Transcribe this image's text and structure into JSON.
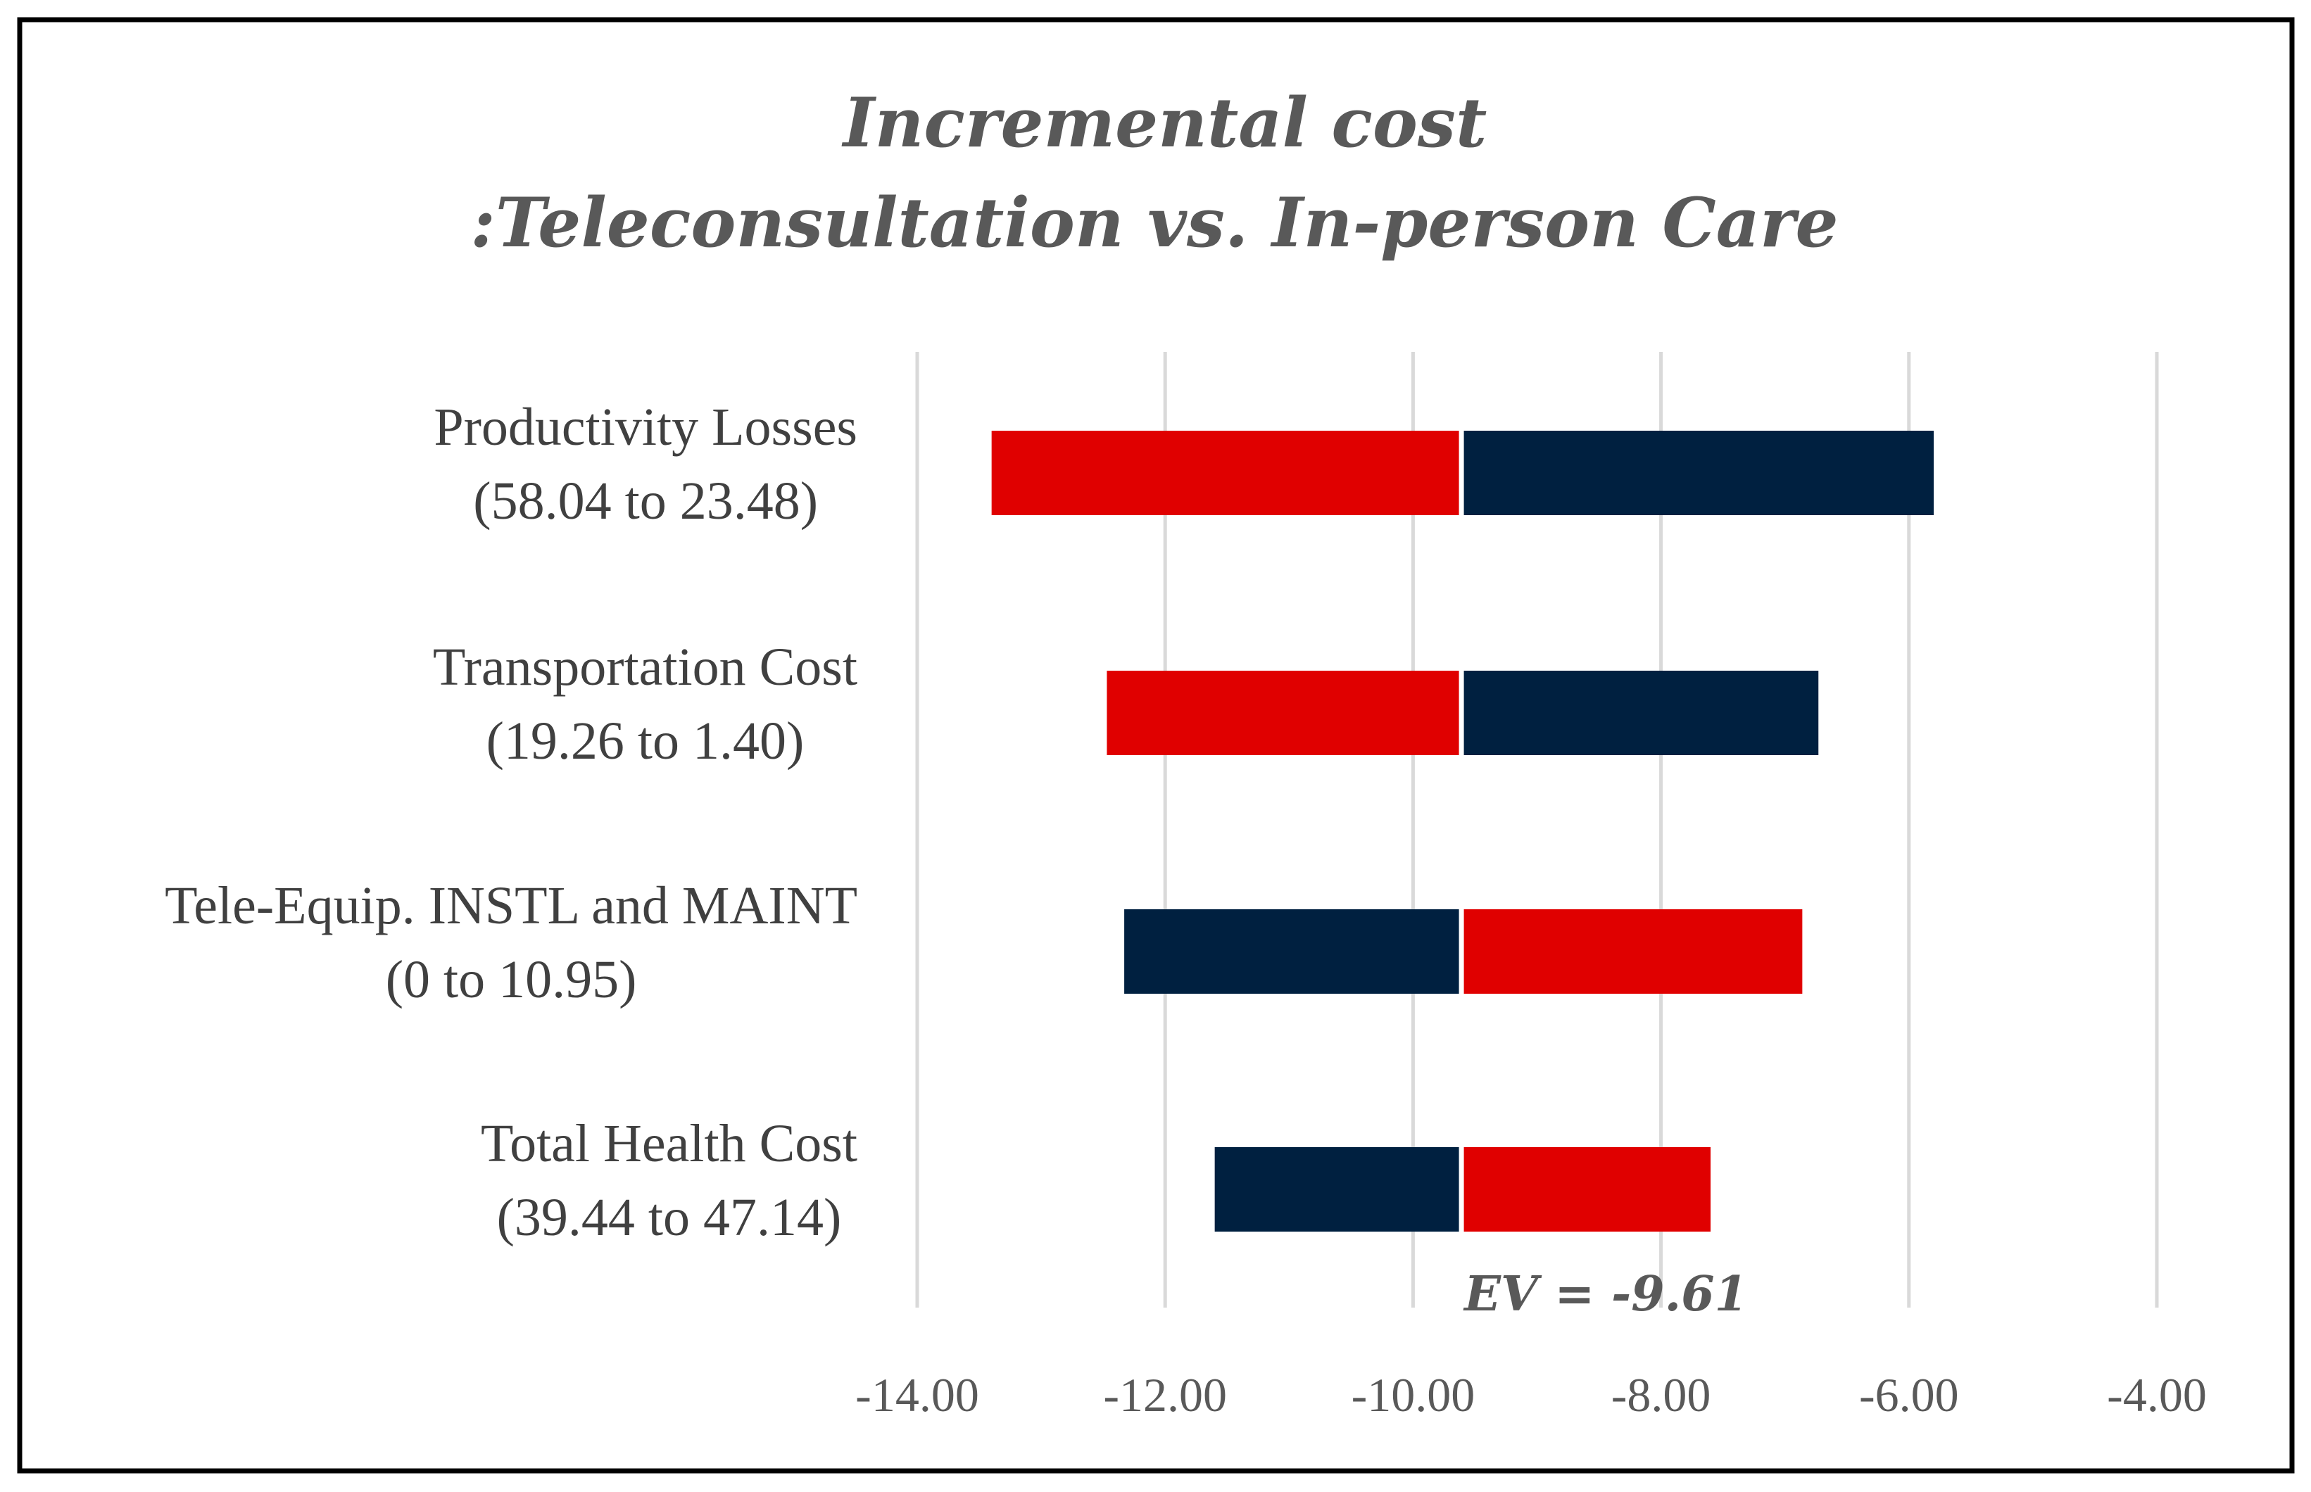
{
  "chart_data": {
    "type": "tornado",
    "title_line1": "Incremental cost",
    "title_line2": ":Teleconsultation vs. In-person Care",
    "base_value": -9.61,
    "base_label": "EV = -9.61",
    "xlim": [
      -14,
      -4
    ],
    "x_ticks": [
      -14,
      -12,
      -10,
      -8,
      -6,
      -4
    ],
    "x_tick_labels": [
      "-14.00",
      "-12.00",
      "-10.00",
      "-8.00",
      "-6.00",
      "-4.00"
    ],
    "grid": true,
    "colors": {
      "red": "#e00000",
      "navy": "#002040",
      "title": "#595959",
      "label": "#404040",
      "grid": "#d9d9d9"
    },
    "series": [
      {
        "name": "Productivity Losses",
        "range_label": "(58.04 to 23.48)",
        "left_value": -13.4,
        "right_value": -5.8,
        "left_color": "red",
        "right_color": "navy"
      },
      {
        "name": "Transportation Cost",
        "range_label": "(19.26 to 1.40)",
        "left_value": -12.47,
        "right_value": -6.73,
        "left_color": "red",
        "right_color": "navy"
      },
      {
        "name": "Tele-Equip. INSTL and MAINT",
        "range_label": "(0 to 10.95)",
        "left_value": -12.33,
        "right_value": -6.86,
        "left_color": "navy",
        "right_color": "red"
      },
      {
        "name": "Total Health Cost",
        "range_label": "(39.44 to 47.14)",
        "left_value": -11.6,
        "right_value": -7.6,
        "left_color": "navy",
        "right_color": "red"
      }
    ]
  }
}
